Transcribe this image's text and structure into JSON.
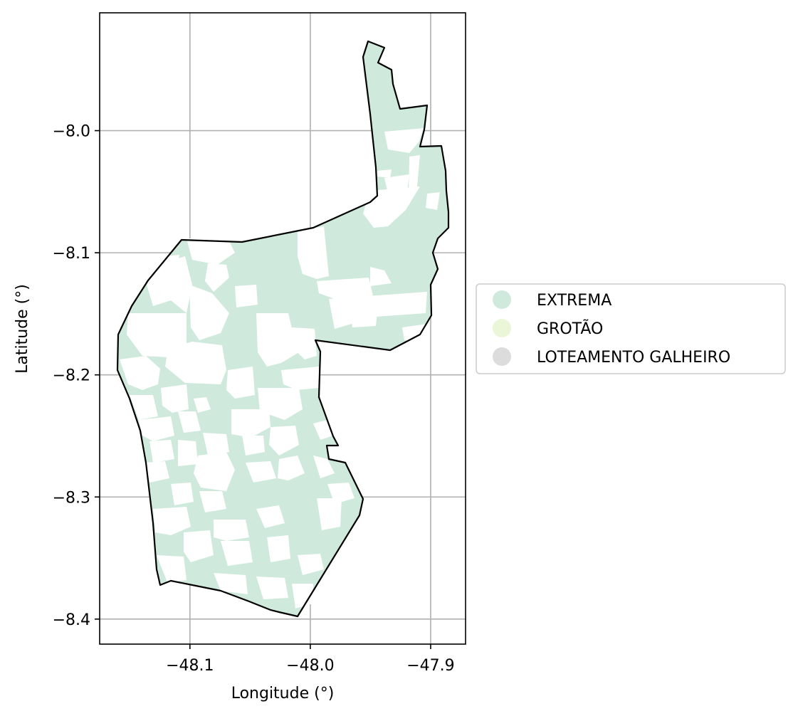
{
  "chart_data": {
    "type": "map",
    "xlabel": "Longitude (°)",
    "ylabel": "Latitude (°)",
    "xlim": [
      -48.175,
      -47.871
    ],
    "ylim": [
      -8.4205,
      -7.9035
    ],
    "xticks": [
      {
        "value": -48.1,
        "label": "−48.1"
      },
      {
        "value": -48.0,
        "label": "−48.0"
      },
      {
        "value": -47.9,
        "label": "−47.9"
      }
    ],
    "yticks": [
      {
        "value": -8.0,
        "label": "−8.0"
      },
      {
        "value": -8.1,
        "label": "−8.1"
      },
      {
        "value": -8.2,
        "label": "−8.2"
      },
      {
        "value": -8.3,
        "label": "−8.3"
      },
      {
        "value": -8.4,
        "label": "−8.4"
      }
    ],
    "grid": true,
    "legend_position": "right",
    "legend": [
      {
        "label": "EXTREMA",
        "color": "#cfeadc"
      },
      {
        "label": "GROTÃO",
        "color": "#eaf6d7"
      },
      {
        "label": "LOTEAMENTO  GALHEIRO",
        "color": "#dcdcdc"
      }
    ],
    "boundary_color": "#000000",
    "fill_color": "#cfeadc"
  }
}
